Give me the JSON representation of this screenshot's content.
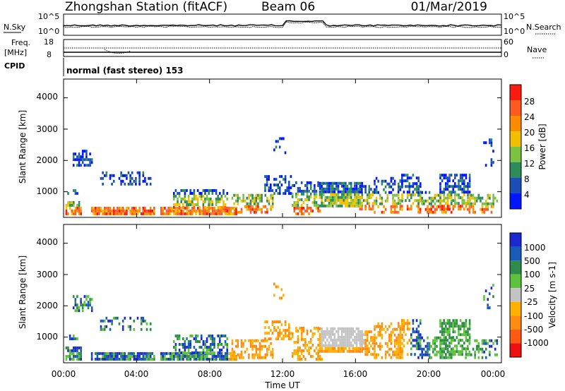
{
  "header": {
    "title": "Zhongshan Station (fitACF)",
    "beam": "Beam 06",
    "date": "01/Mar/2019"
  },
  "chart_data": [
    {
      "type": "line",
      "panel": "noise",
      "left_label": "N.Sky",
      "right_label": "N.Search",
      "y_ticks_left": [
        "10^5",
        "10^0"
      ],
      "y_ticks_right": [
        "10^5",
        "10^0"
      ]
    },
    {
      "type": "line",
      "panel": "frequency",
      "left_label": "Freq.",
      "left_unit": "[MHz]",
      "right_label": "Nave",
      "y_ticks_left": [
        "18",
        "8"
      ],
      "y_ticks_right": [
        "60",
        "0"
      ]
    },
    {
      "type": "table",
      "panel": "cpid",
      "label": "CPID",
      "value": "normal (fast stereo) 153"
    },
    {
      "type": "heatmap",
      "panel": "power",
      "ylabel": "Slant Range [km]",
      "y_ticks": [
        "1000",
        "2000",
        "3000",
        "4000"
      ],
      "ylim": [
        180,
        4600
      ],
      "colorbar_label": "Power [dB]",
      "colorbar_ticks": [
        "4",
        "8",
        "12",
        "16",
        "20",
        "24",
        "28"
      ],
      "colors": [
        "#0016ff",
        "#1b4fb5",
        "#2c8c5a",
        "#7bc142",
        "#f2c000",
        "#ff8c00",
        "#ff5a1f",
        "#ff1a10"
      ]
    },
    {
      "type": "heatmap",
      "panel": "velocity",
      "ylabel": "Slant Range [km]",
      "y_ticks": [
        "1000",
        "2000",
        "3000",
        "4000"
      ],
      "ylim": [
        180,
        4600
      ],
      "colorbar_label": "Velocity [m s-1]",
      "colorbar_ticks": [
        "1000",
        "500",
        "100",
        "25",
        "-25",
        "-100",
        "-500",
        "-1000"
      ],
      "colors": [
        "#1a2ad0",
        "#1a5ab8",
        "#2e8c4a",
        "#5cc23a",
        "#c4c4c4",
        "#ffb000",
        "#ff8c10",
        "#ff5a10",
        "#ee1010"
      ]
    }
  ],
  "x_axis": {
    "label": "Time UT",
    "ticks": [
      "00:00",
      "04:00",
      "08:00",
      "12:00",
      "16:00",
      "20:00",
      "00:00"
    ]
  }
}
